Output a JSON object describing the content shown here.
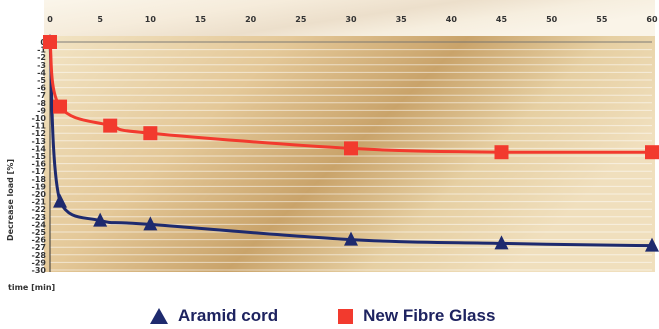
{
  "chart_data": {
    "type": "line",
    "title": "",
    "xlabel": "time [min]",
    "ylabel": "Decrease load [%]",
    "xlim": [
      0,
      60
    ],
    "ylim": [
      -30,
      0
    ],
    "x_ticks": [
      0,
      5,
      10,
      15,
      20,
      25,
      30,
      35,
      40,
      45,
      50,
      55,
      60
    ],
    "y_ticks": [
      0,
      -1,
      -2,
      -3,
      -4,
      -5,
      -6,
      -7,
      -8,
      -9,
      -10,
      -11,
      -12,
      -13,
      -14,
      -15,
      -16,
      -17,
      -18,
      -19,
      -20,
      -21,
      -22,
      -23,
      -24,
      -25,
      -26,
      -27,
      -28,
      -29,
      -30
    ],
    "grid": true,
    "legend_position": "bottom",
    "series": [
      {
        "name": "Aramid cord",
        "marker": "triangle",
        "color": "#1e2a6e",
        "x": [
          0,
          1,
          5,
          10,
          30,
          45,
          60
        ],
        "y": [
          0,
          -21,
          -23.5,
          -24,
          -26,
          -26.5,
          -26.8
        ]
      },
      {
        "name": "New Fibre Glass",
        "marker": "square",
        "color": "#f23a2e",
        "x": [
          0,
          1,
          6,
          10,
          30,
          45,
          60
        ],
        "y": [
          0,
          -8.5,
          -11,
          -12,
          -14,
          -14.5,
          -14.5
        ]
      }
    ]
  }
}
